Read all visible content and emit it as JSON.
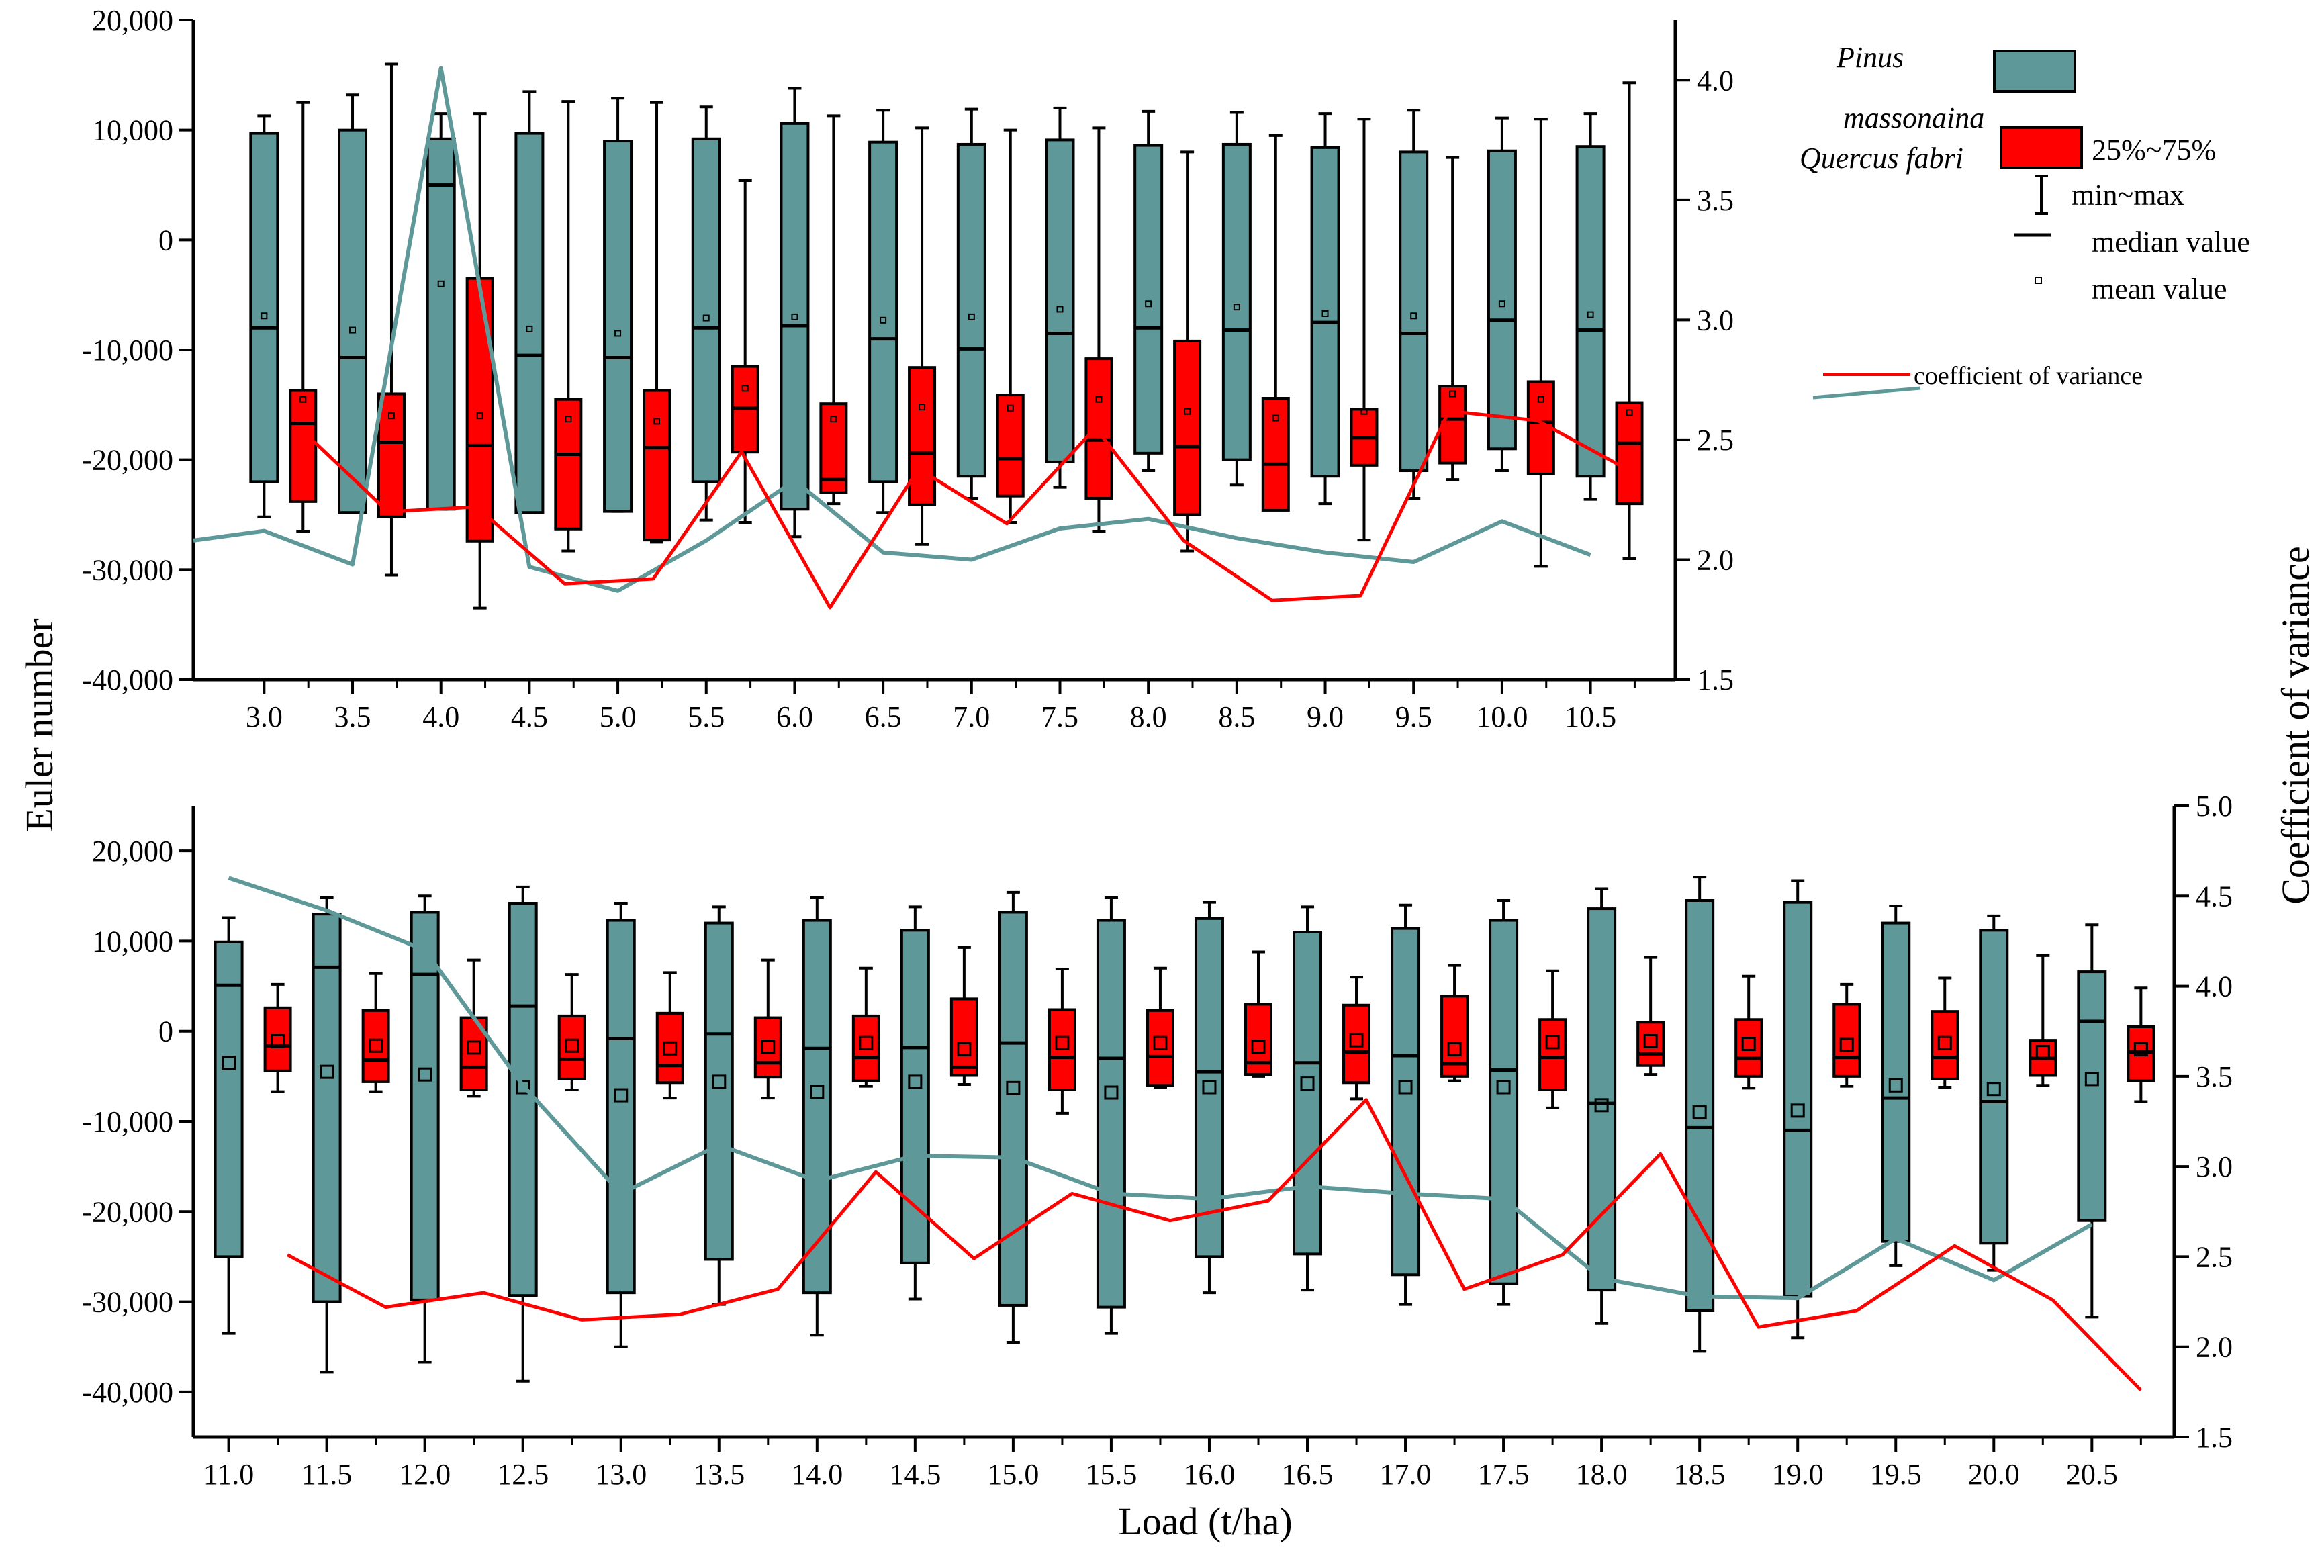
{
  "labels": {
    "y_left": "Euler number",
    "y_right": "Coefficient of variance",
    "x": "Load (t/ha)"
  },
  "legend": {
    "pinus": "Pinus",
    "pinus2": "massonaina",
    "quercus": "Quercus fabri",
    "iqr": "25%~75%",
    "range": "min~max",
    "median": "median value",
    "mean": "mean value",
    "cv": "coefficient of variance"
  },
  "colors": {
    "pinus": "#5f9898",
    "quercus": "#ff0000",
    "axis": "#000000"
  },
  "chart_data": [
    {
      "type": "box",
      "panel": "top",
      "xlabel": "",
      "ylabel": "Euler number",
      "y2label": "",
      "ylim": [
        -40000,
        20000
      ],
      "y2lim": [
        1.5,
        4.25
      ],
      "yticks": [
        20000,
        10000,
        0,
        -10000,
        -20000,
        -30000,
        -40000
      ],
      "yticklabels": [
        "20,000",
        "10,000",
        "0",
        "-10,000",
        "-20,000",
        "-30,000",
        "-40,000"
      ],
      "y2ticks": [
        1.5,
        2.0,
        2.5,
        3.0,
        3.5,
        4.0
      ],
      "y2ticklabels": [
        "1.5",
        "2.0",
        "2.5",
        "3.0",
        "3.5",
        "4.0"
      ],
      "categories": [
        "3.0",
        "3.5",
        "4.0",
        "4.5",
        "5.0",
        "5.5",
        "6.0",
        "6.5",
        "7.0",
        "7.5",
        "8.0",
        "8.5",
        "9.0",
        "9.5",
        "10.0",
        "10.5"
      ],
      "series": [
        {
          "name": "Pinus massonaina",
          "min": [
            -25200,
            -24800,
            -24500,
            -24800,
            -24700,
            -25500,
            -27000,
            -24800,
            -23500,
            -22500,
            -21000,
            -22300,
            -24000,
            -23500,
            -21000,
            -23600
          ],
          "q1": [
            -22000,
            -24800,
            -24500,
            -24800,
            -24700,
            -22000,
            -24500,
            -22000,
            -21500,
            -20200,
            -19400,
            -20000,
            -21500,
            -21000,
            -19000,
            -21500
          ],
          "median": [
            -8000,
            -10700,
            5000,
            -10500,
            -10700,
            -8000,
            -7800,
            -9000,
            -9900,
            -8500,
            -8000,
            -8200,
            -7500,
            -8500,
            -7300,
            -8200
          ],
          "q3": [
            9700,
            10000,
            9200,
            9700,
            9000,
            9200,
            10600,
            8900,
            8700,
            9100,
            8600,
            8700,
            8400,
            8000,
            8100,
            8500
          ],
          "max": [
            11300,
            13200,
            11500,
            13500,
            12900,
            12100,
            13800,
            11800,
            11900,
            12000,
            11700,
            11600,
            11500,
            11800,
            11100,
            11500
          ],
          "mean": [
            -6900,
            -8200,
            -4000,
            -8100,
            -8500,
            -7100,
            -7000,
            -7300,
            -7000,
            -6300,
            -5800,
            -6100,
            -6700,
            -6900,
            -5800,
            -6800
          ]
        },
        {
          "name": "Quercus fabri",
          "min": [
            -26500,
            -30500,
            -33500,
            -28300,
            -27500,
            -25700,
            -24000,
            -27700,
            -25700,
            -26500,
            -28300,
            -22500,
            -27300,
            -21800,
            -29700,
            -29000
          ],
          "q1": [
            -23800,
            -25200,
            -27400,
            -26300,
            -27300,
            -19300,
            -23000,
            -24100,
            -23300,
            -23500,
            -25000,
            -24600,
            -20500,
            -20300,
            -21300,
            -24000
          ],
          "median": [
            -16700,
            -18400,
            -18700,
            -19500,
            -18900,
            -15300,
            -21800,
            -19400,
            -19900,
            -18200,
            -18800,
            -20400,
            -18000,
            -16300,
            -16600,
            -18500
          ],
          "q3": [
            -13700,
            -14000,
            -3500,
            -14500,
            -13700,
            -11500,
            -14900,
            -11600,
            -14100,
            -10800,
            -9200,
            -14400,
            -15400,
            -13300,
            -12900,
            -14800
          ],
          "max": [
            12500,
            16000,
            11500,
            12600,
            12500,
            5400,
            11300,
            10200,
            10000,
            10200,
            8000,
            9500,
            11000,
            7500,
            11000,
            14300
          ],
          "mean": [
            -14500,
            -16000,
            -16000,
            -16300,
            -16500,
            -13500,
            -16300,
            -15200,
            -15300,
            -14500,
            -15600,
            -16200,
            -15600,
            -14000,
            -14500,
            -15700
          ]
        }
      ],
      "cv_series": [
        {
          "name": "Pinus massonaina",
          "x": [
            2.6,
            3.0,
            3.5,
            4.0,
            4.5,
            5.0,
            5.5,
            6.0,
            6.5,
            7.0,
            7.5,
            8.0,
            8.5,
            9.0,
            9.5,
            10.0,
            10.5
          ],
          "values": [
            2.08,
            2.12,
            1.98,
            4.05,
            1.97,
            1.87,
            2.08,
            2.33,
            2.03,
            2.0,
            2.13,
            2.17,
            2.09,
            2.03,
            1.99,
            2.16,
            2.02
          ]
        },
        {
          "name": "Quercus fabri",
          "x": [
            3.2,
            3.7,
            4.2,
            4.7,
            5.2,
            5.7,
            6.2,
            6.7,
            7.2,
            7.7,
            8.2,
            8.7,
            9.2,
            9.7,
            10.2,
            10.7
          ],
          "values": [
            2.55,
            2.2,
            2.22,
            1.9,
            1.92,
            2.45,
            1.8,
            2.38,
            2.15,
            2.55,
            2.08,
            1.83,
            1.85,
            2.62,
            2.58,
            2.38
          ]
        }
      ]
    },
    {
      "type": "box",
      "panel": "bottom",
      "xlabel": "Load (t/ha)",
      "ylabel": "Euler number",
      "y2label": "Coefficient of variance",
      "ylim": [
        -45000,
        25000
      ],
      "y2lim": [
        1.5,
        5.0
      ],
      "yticks": [
        20000,
        10000,
        0,
        -10000,
        -20000,
        -30000,
        -40000
      ],
      "yticklabels": [
        "20,000",
        "10,000",
        "0",
        "-10,000",
        "-20,000",
        "-30,000",
        "-40,000"
      ],
      "y2ticks": [
        1.5,
        2.0,
        2.5,
        3.0,
        3.5,
        4.0,
        4.5,
        5.0
      ],
      "y2ticklabels": [
        "1.5",
        "2.0",
        "2.5",
        "3.0",
        "3.5",
        "4.0",
        "4.5",
        "5.0"
      ],
      "categories": [
        "11.0",
        "11.5",
        "12.0",
        "12.5",
        "13.0",
        "13.5",
        "14.0",
        "14.5",
        "15.0",
        "15.5",
        "16.0",
        "16.5",
        "17.0",
        "17.5",
        "18.0",
        "18.5",
        "19.0",
        "19.5",
        "20.0",
        "20.5"
      ],
      "series": [
        {
          "name": "Pinus massonaina",
          "min": [
            -33500,
            -37800,
            -36700,
            -38800,
            -35000,
            -30300,
            -33700,
            -29700,
            -34500,
            -33500,
            -29000,
            -28700,
            -30300,
            -30300,
            -32400,
            -35500,
            -34000,
            -26000,
            -26500,
            -31700
          ],
          "q1": [
            -25000,
            -30000,
            -29800,
            -29300,
            -29000,
            -25300,
            -29000,
            -25700,
            -30400,
            -30600,
            -25000,
            -24700,
            -27000,
            -28000,
            -28700,
            -31000,
            -29400,
            -23300,
            -23500,
            -21000
          ],
          "median": [
            5100,
            7100,
            6300,
            2800,
            -800,
            -300,
            -1900,
            -1800,
            -1300,
            -3000,
            -4500,
            -3500,
            -2700,
            -4300,
            -8000,
            -10700,
            -11000,
            -7400,
            -7800,
            1100
          ],
          "q3": [
            9900,
            13000,
            13200,
            14200,
            12300,
            12000,
            12300,
            11200,
            13200,
            12300,
            12500,
            11000,
            11400,
            12300,
            13600,
            14500,
            14300,
            12000,
            11200,
            6600
          ],
          "max": [
            12600,
            14800,
            15000,
            16000,
            14200,
            13800,
            14800,
            13800,
            15400,
            14800,
            14300,
            13800,
            14000,
            14500,
            15800,
            17100,
            16700,
            13900,
            12800,
            11800
          ],
          "mean": [
            -3500,
            -4500,
            -4800,
            -6200,
            -7100,
            -5600,
            -6700,
            -5600,
            -6300,
            -6800,
            -6200,
            -5800,
            -6200,
            -6200,
            -8200,
            -9000,
            -8800,
            -6000,
            -6400,
            -5300
          ]
        },
        {
          "name": "Quercus fabri",
          "min": [
            -6700,
            -6700,
            -7200,
            -6500,
            -7400,
            -7400,
            -6100,
            -5900,
            -9100,
            -6200,
            -5000,
            -7500,
            -5500,
            -8500,
            -4800,
            -6300,
            -6100,
            -6200,
            -6000,
            -7800
          ],
          "q1": [
            -4400,
            -5600,
            -6500,
            -5300,
            -5700,
            -5100,
            -5500,
            -4900,
            -6500,
            -6000,
            -4800,
            -5700,
            -5000,
            -6500,
            -3800,
            -5000,
            -5000,
            -5300,
            -4900,
            -5500
          ],
          "median": [
            -1600,
            -3200,
            -4000,
            -3100,
            -3800,
            -3500,
            -2900,
            -4000,
            -2900,
            -2800,
            -3500,
            -2300,
            -3600,
            -2900,
            -2500,
            -3000,
            -2900,
            -2900,
            -3000,
            -2300
          ],
          "q3": [
            2600,
            2300,
            1500,
            1700,
            2000,
            1500,
            1700,
            3600,
            2400,
            2300,
            3000,
            2900,
            3900,
            1300,
            1000,
            1300,
            3000,
            2200,
            -1000,
            500
          ],
          "max": [
            5200,
            6400,
            7900,
            6300,
            6500,
            7900,
            7000,
            9300,
            6900,
            7000,
            8800,
            6000,
            7300,
            6700,
            8200,
            6100,
            5200,
            5900,
            8400,
            4800
          ],
          "mean": [
            -1100,
            -1600,
            -1800,
            -1600,
            -1900,
            -1700,
            -1300,
            -2000,
            -1300,
            -1300,
            -1700,
            -1000,
            -2000,
            -1200,
            -1100,
            -1400,
            -1500,
            -1300,
            -2300,
            -2000
          ]
        }
      ],
      "cv_series": [
        {
          "name": "Pinus massonaina",
          "x": [
            11.0,
            11.5,
            12.0,
            12.5,
            13.0,
            13.5,
            14.0,
            14.5,
            15.0,
            15.5,
            16.0,
            16.5,
            17.0,
            17.5,
            18.0,
            18.5,
            19.0,
            19.5,
            20.0,
            20.5
          ],
          "values": [
            4.6,
            4.42,
            4.2,
            3.45,
            2.85,
            3.12,
            2.92,
            3.06,
            3.05,
            2.85,
            2.82,
            2.89,
            2.85,
            2.82,
            2.38,
            2.28,
            2.27,
            2.6,
            2.37,
            2.68
          ]
        },
        {
          "name": "Quercus fabri",
          "x": [
            11.3,
            11.8,
            12.3,
            12.8,
            13.3,
            13.8,
            14.3,
            14.8,
            15.3,
            15.8,
            16.3,
            16.8,
            17.3,
            17.8,
            18.3,
            18.8,
            19.3,
            19.8,
            20.3,
            20.75
          ],
          "values": [
            2.51,
            2.22,
            2.3,
            2.15,
            2.18,
            2.32,
            2.97,
            2.49,
            2.85,
            2.7,
            2.81,
            3.37,
            2.32,
            2.51,
            3.07,
            2.11,
            2.2,
            2.56,
            2.26,
            1.76
          ]
        }
      ]
    }
  ]
}
